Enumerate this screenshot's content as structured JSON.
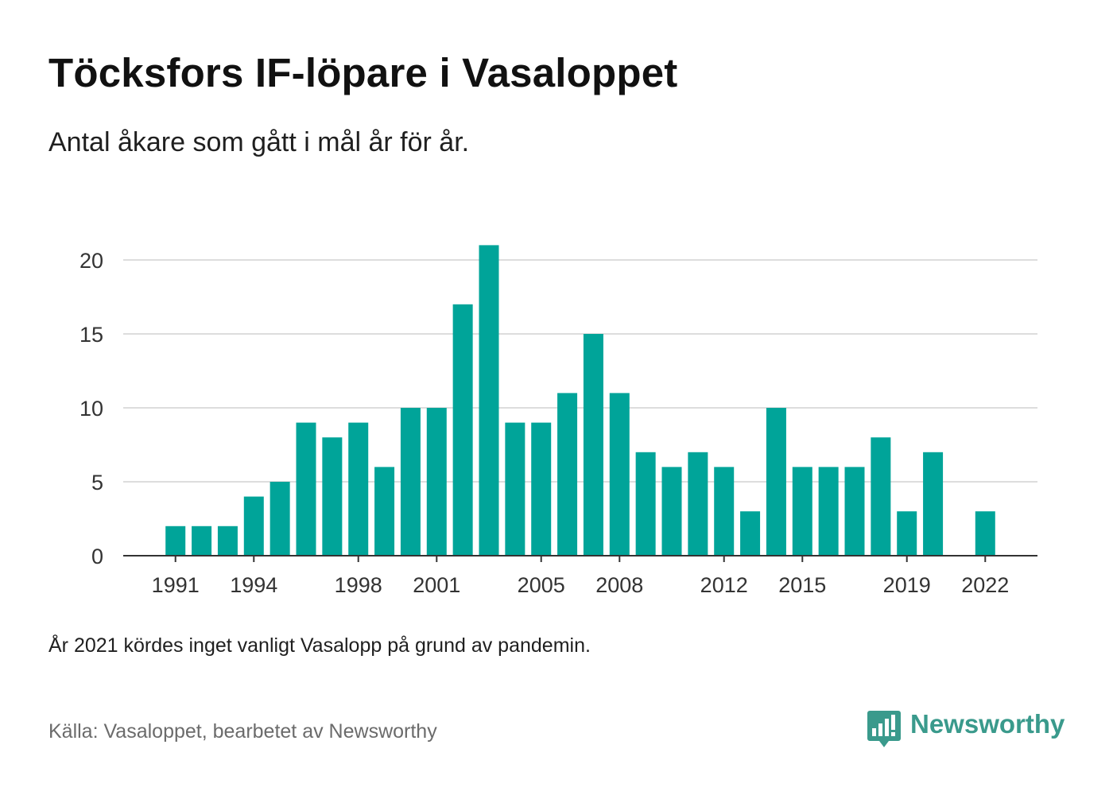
{
  "header": {
    "title": "Töcksfors IF-löpare i Vasaloppet",
    "subtitle": "Antal åkare som gått i mål år för år."
  },
  "footer": {
    "note": "År 2021 kördes inget vanligt Vasalopp på grund av pandemin.",
    "source": "Källa: Vasaloppet, bearbetet av Newsworthy",
    "brand": "Newsworthy"
  },
  "colors": {
    "bar": "#00a499",
    "grid": "#dddddd",
    "baseline": "#333333",
    "brand": "#3a9a8c"
  },
  "icons": {
    "brand_logo": "newsworthy-logo-icon"
  },
  "chart_data": {
    "type": "bar",
    "categories": [
      1991,
      1992,
      1993,
      1994,
      1995,
      1996,
      1997,
      1998,
      1999,
      2000,
      2001,
      2002,
      2003,
      2004,
      2005,
      2006,
      2007,
      2008,
      2009,
      2010,
      2011,
      2012,
      2013,
      2014,
      2015,
      2016,
      2017,
      2018,
      2019,
      2020,
      2021,
      2022
    ],
    "values": [
      2,
      2,
      2,
      4,
      5,
      9,
      8,
      9,
      6,
      10,
      10,
      17,
      21,
      9,
      9,
      11,
      15,
      11,
      7,
      6,
      7,
      6,
      3,
      10,
      6,
      6,
      6,
      8,
      3,
      7,
      0,
      3
    ],
    "xticks": [
      1991,
      1994,
      1998,
      2001,
      2005,
      2008,
      2012,
      2015,
      2019,
      2022
    ],
    "yticks": [
      0,
      5,
      10,
      15,
      20
    ],
    "ylim": [
      0,
      21
    ],
    "xlim": [
      1989,
      2024
    ],
    "grid": true
  }
}
